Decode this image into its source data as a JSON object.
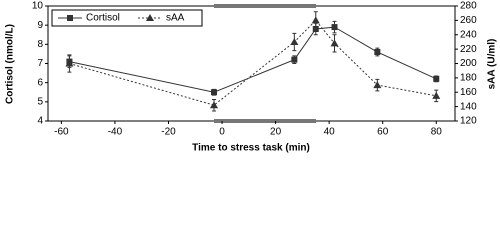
{
  "chart_data": {
    "type": "line",
    "x_label": "Time to stress task (min)",
    "y_label": "Cortisol (nmol/L)",
    "y2_label": "sAA (U/ml)",
    "x": [
      -57,
      -3,
      27,
      35,
      42,
      58,
      80
    ],
    "series": [
      {
        "name": "Cortisol",
        "color": "#333333",
        "marker": "square",
        "dash": false,
        "values": [
          7.1,
          5.5,
          7.2,
          8.8,
          8.9,
          7.6,
          6.2
        ],
        "errors": [
          0.3,
          0.15,
          0.2,
          0.3,
          0.3,
          0.2,
          0.15
        ]
      },
      {
        "name": "sAA",
        "color": "#333333",
        "marker": "triangle",
        "dash": true,
        "axis": "y2",
        "values": [
          200,
          142,
          230,
          260,
          228,
          170,
          155
        ],
        "errors": [
          12,
          8,
          12,
          12,
          12,
          8,
          8
        ]
      }
    ],
    "xlim": [
      -65,
      87
    ],
    "xticks": [
      -60,
      -40,
      -20,
      0,
      20,
      40,
      60,
      80
    ],
    "ylim": [
      4,
      10
    ],
    "yticks": [
      4,
      5,
      6,
      7,
      8,
      9,
      10
    ],
    "y2lim": [
      120,
      280
    ],
    "y2ticks": [
      120,
      140,
      160,
      180,
      200,
      220,
      240,
      260,
      280
    ],
    "legend": "top-left"
  }
}
